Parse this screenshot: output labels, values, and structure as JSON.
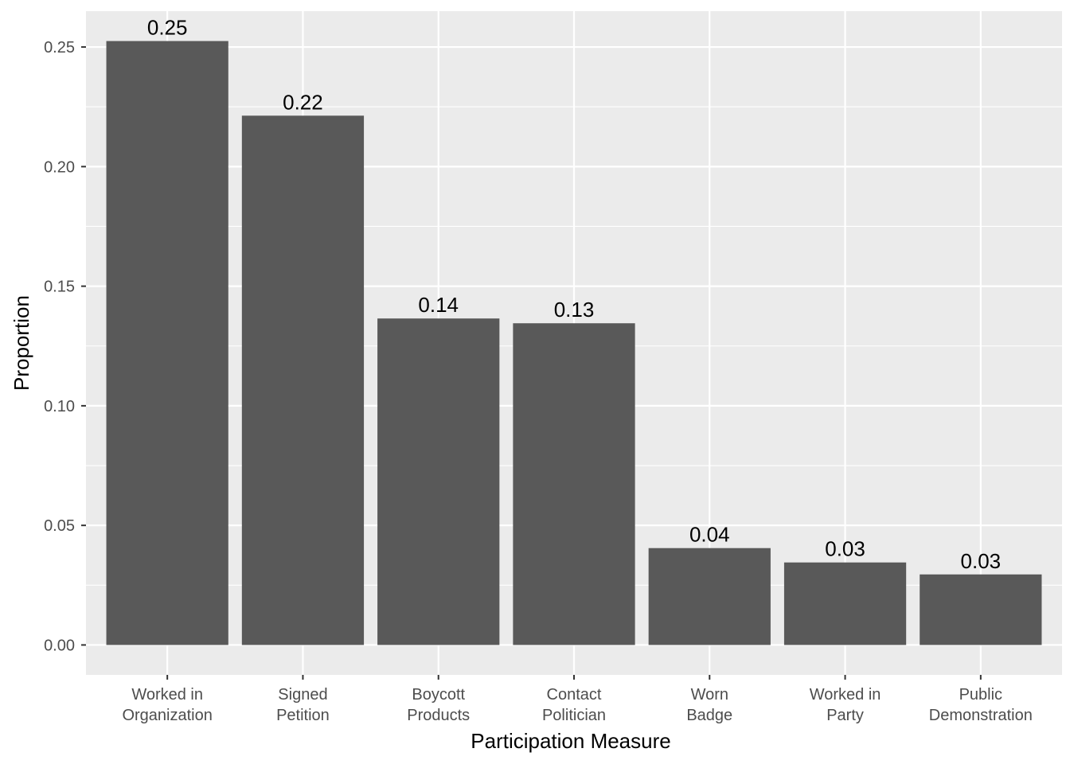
{
  "chart_data": {
    "type": "bar",
    "categories": [
      [
        "Worked in",
        "Organization"
      ],
      [
        "Signed",
        "Petition"
      ],
      [
        "Boycott",
        "Products"
      ],
      [
        "Contact",
        "Politician"
      ],
      [
        "Worn",
        "Badge"
      ],
      [
        "Worked in",
        "Party"
      ],
      [
        "Public",
        "Demonstration"
      ]
    ],
    "values": [
      0.2525,
      0.2213,
      0.1365,
      0.1345,
      0.0405,
      0.0345,
      0.0295
    ],
    "labels": [
      "0.25",
      "0.22",
      "0.14",
      "0.13",
      "0.04",
      "0.03",
      "0.03"
    ],
    "xlabel": "Participation Measure",
    "ylabel": "Proportion",
    "ylim": [
      -0.0125,
      0.265
    ],
    "yticks": [
      0.0,
      0.05,
      0.1,
      0.15,
      0.2,
      0.25
    ],
    "ytick_labels": [
      "0.00",
      "0.05",
      "0.10",
      "0.15",
      "0.20",
      "0.25"
    ],
    "grid": true,
    "legend": "none",
    "colors": {
      "panel": "#EBEBEB",
      "grid": "#FFFFFF",
      "bar": "#595959",
      "tick_text": "#4D4D4D",
      "tick_line": "#333333",
      "title_text": "#000000"
    }
  }
}
